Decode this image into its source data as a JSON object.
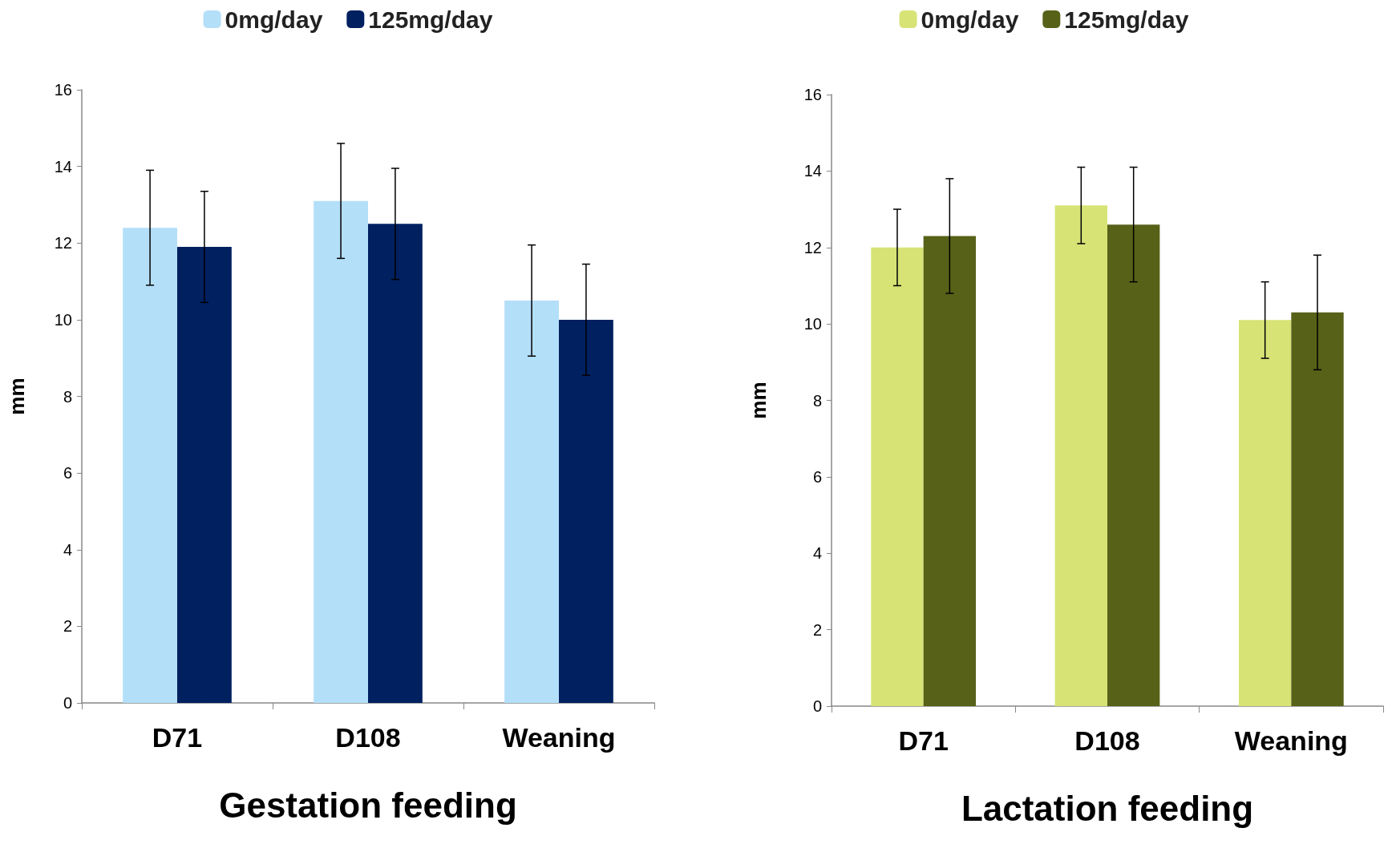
{
  "chart_data": [
    {
      "type": "bar",
      "xlabel": "Gestation feeding",
      "ylabel": "mm",
      "categories": [
        "D71",
        "D108",
        "Weaning"
      ],
      "series": [
        {
          "name": "0mg/day",
          "color": "#b3dff9",
          "values": [
            12.4,
            13.1,
            10.5
          ],
          "errors": [
            1.5,
            1.5,
            1.45
          ]
        },
        {
          "name": "125mg/day",
          "color": "#002060",
          "values": [
            11.9,
            12.5,
            10.0
          ],
          "errors": [
            1.45,
            1.45,
            1.45
          ]
        }
      ],
      "ylim": [
        0,
        16
      ],
      "yticks": [
        0,
        2,
        4,
        6,
        8,
        10,
        12,
        14,
        16
      ],
      "grid": false,
      "legend": "top"
    },
    {
      "type": "bar",
      "xlabel": "Lactation feeding",
      "ylabel": "mm",
      "categories": [
        "D71",
        "D108",
        "Weaning"
      ],
      "series": [
        {
          "name": "0mg/day",
          "color": "#d7e375",
          "values": [
            12.0,
            13.1,
            10.1
          ],
          "errors": [
            1,
            1,
            1
          ]
        },
        {
          "name": "125mg/day",
          "color": "#576118",
          "values": [
            12.3,
            12.6,
            10.3
          ],
          "errors": [
            1.5,
            1.5,
            1.5
          ]
        }
      ],
      "ylim": [
        0,
        16
      ],
      "yticks": [
        0,
        2,
        4,
        6,
        8,
        10,
        12,
        14,
        16
      ],
      "grid": false,
      "legend": "top"
    }
  ]
}
